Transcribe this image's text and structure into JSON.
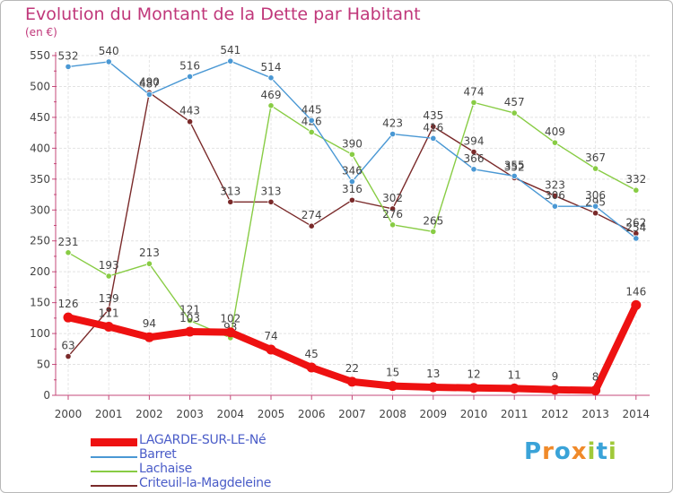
{
  "title": "Evolution du Montant de la Dette par Habitant",
  "unit_label": "(en €)",
  "brand": "Proxiti",
  "chart_data": {
    "type": "line",
    "title": "Evolution du Montant de la Dette par Habitant",
    "ylabel": "(en €)",
    "xlabel": "",
    "x": [
      "2000",
      "2001",
      "2002",
      "2003",
      "2004",
      "2005",
      "2006",
      "2007",
      "2008",
      "2009",
      "2010",
      "2011",
      "2012",
      "2013",
      "2014"
    ],
    "ylim": [
      0,
      550
    ],
    "yticks": [
      0,
      50,
      100,
      150,
      200,
      250,
      300,
      350,
      400,
      450,
      500,
      550
    ],
    "grid": true,
    "legend_position": "bottom-left",
    "series": [
      {
        "name": "LAGARDE-SUR-LE-Né",
        "color": "#ee1111",
        "values": [
          126,
          111,
          94,
          103,
          102,
          74,
          45,
          22,
          15,
          13,
          12,
          11,
          9,
          8,
          146
        ]
      },
      {
        "name": "Barret",
        "color": "#4a98d4",
        "values": [
          532,
          540,
          487,
          516,
          541,
          514,
          445,
          346,
          423,
          416,
          366,
          355,
          306,
          306,
          254
        ]
      },
      {
        "name": "Lachaise",
        "color": "#88cc44",
        "values": [
          231,
          193,
          213,
          121,
          93,
          469,
          426,
          390,
          276,
          265,
          474,
          457,
          409,
          367,
          332
        ]
      },
      {
        "name": "Criteuil-la-Magdeleine",
        "color": "#7a2a2a",
        "values": [
          63,
          139,
          490,
          443,
          313,
          313,
          274,
          316,
          302,
          435,
          394,
          352,
          323,
          295,
          262
        ]
      }
    ]
  }
}
